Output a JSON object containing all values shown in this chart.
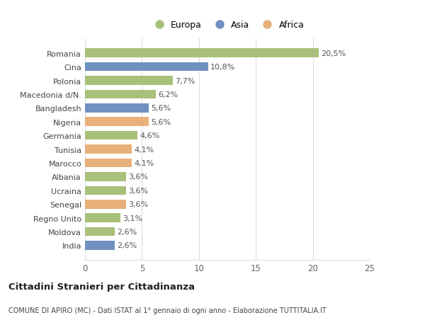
{
  "countries": [
    "Romania",
    "Cina",
    "Polonia",
    "Macedonia d/N.",
    "Bangladesh",
    "Nigeria",
    "Germania",
    "Tunisia",
    "Marocco",
    "Albania",
    "Ucraina",
    "Senegal",
    "Regno Unito",
    "Moldova",
    "India"
  ],
  "values": [
    20.5,
    10.8,
    7.7,
    6.2,
    5.6,
    5.6,
    4.6,
    4.1,
    4.1,
    3.6,
    3.6,
    3.6,
    3.1,
    2.6,
    2.6
  ],
  "labels": [
    "20,5%",
    "10,8%",
    "7,7%",
    "6,2%",
    "5,6%",
    "5,6%",
    "4,6%",
    "4,1%",
    "4,1%",
    "3,6%",
    "3,6%",
    "3,6%",
    "3,1%",
    "2,6%",
    "2,6%"
  ],
  "continents": [
    "Europa",
    "Asia",
    "Europa",
    "Europa",
    "Asia",
    "Africa",
    "Europa",
    "Africa",
    "Africa",
    "Europa",
    "Europa",
    "Africa",
    "Europa",
    "Europa",
    "Asia"
  ],
  "colors": {
    "Europa": "#a8c07a",
    "Asia": "#7090c0",
    "Africa": "#e8b07a"
  },
  "xlim": [
    0,
    25
  ],
  "xticks": [
    0,
    5,
    10,
    15,
    20,
    25
  ],
  "title": "Cittadini Stranieri per Cittadinanza",
  "subtitle": "COMUNE DI APIRO (MC) - Dati ISTAT al 1° gennaio di ogni anno - Elaborazione TUTTITALIA.IT",
  "background_color": "#ffffff",
  "grid_color": "#dddddd",
  "bar_height": 0.65
}
